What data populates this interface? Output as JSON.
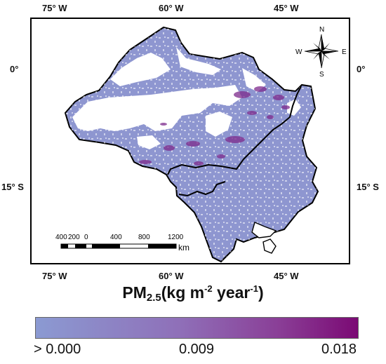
{
  "axis_labels": {
    "top": [
      "75° W",
      "60° W",
      "45° W"
    ],
    "bottom": [
      "75° W",
      "60° W",
      "45° W"
    ],
    "left": [
      "0°",
      "15° S"
    ],
    "right": [
      "0°",
      "15° S"
    ]
  },
  "compass": {
    "n": "N",
    "s": "S",
    "e": "E",
    "w": "W"
  },
  "scale_bar": {
    "labels": [
      "400",
      "200",
      "0",
      "400",
      "800",
      "1200"
    ],
    "unit": "km"
  },
  "legend": {
    "title_main": "PM",
    "title_sub": "2.5",
    "title_open": "(kg m",
    "title_exp1": "-2",
    "title_mid": " year",
    "title_exp2": "-1",
    "title_close": ")",
    "ticks": [
      "> 0.000",
      "0.009",
      "0.018"
    ],
    "color_start": "#8b9ad2",
    "color_end": "#7b0a74"
  },
  "colors": {
    "land_fill": "#8e96d0",
    "hotspot": "#7d2a8c",
    "boundary": "#000000"
  }
}
